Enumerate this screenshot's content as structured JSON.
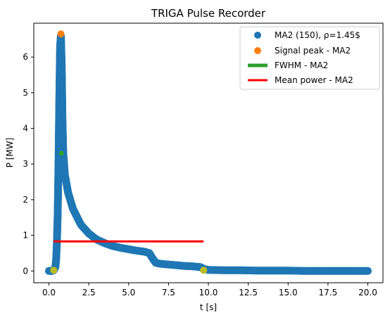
{
  "chart_data": {
    "type": "scatter",
    "title": "TRIGA Pulse Recorder",
    "xlabel": "t [s]",
    "ylabel": "P [MW]",
    "xlim": [
      -0.95,
      20.95
    ],
    "ylim": [
      -0.33,
      6.95
    ],
    "x_ticks": [
      {
        "value": 0.0,
        "label": "0.0"
      },
      {
        "value": 2.5,
        "label": "2.5"
      },
      {
        "value": 5.0,
        "label": "5.0"
      },
      {
        "value": 7.5,
        "label": "7.5"
      },
      {
        "value": 10.0,
        "label": "10.0"
      },
      {
        "value": 12.5,
        "label": "12.5"
      },
      {
        "value": 15.0,
        "label": "15.0"
      },
      {
        "value": 17.5,
        "label": "17.5"
      },
      {
        "value": 20.0,
        "label": "20.0"
      }
    ],
    "y_ticks": [
      {
        "value": 0,
        "label": "0"
      },
      {
        "value": 1,
        "label": "1"
      },
      {
        "value": 2,
        "label": "2"
      },
      {
        "value": 3,
        "label": "3"
      },
      {
        "value": 4,
        "label": "4"
      },
      {
        "value": 5,
        "label": "5"
      },
      {
        "value": 6,
        "label": "6"
      }
    ],
    "grid": false,
    "legend": {
      "position": "top-right",
      "entries": [
        {
          "label": "MA2 (150), ρ=1.45$",
          "marker": "dot",
          "color": "#1f77b4"
        },
        {
          "label": "Signal peak - MA2",
          "marker": "dot",
          "color": "#ff7f0e"
        },
        {
          "label": "FWHM - MA2",
          "marker": "line",
          "color": "#2ca02c"
        },
        {
          "label": "Mean power - MA2",
          "marker": "line",
          "color": "#ff0000"
        }
      ]
    },
    "series": [
      {
        "name": "MA2 (150), ρ=1.45$",
        "kind": "scatter",
        "color": "#1f77b4",
        "points": [
          [
            0.0,
            0.0
          ],
          [
            0.1,
            0.0
          ],
          [
            0.2,
            0.0
          ],
          [
            0.3,
            0.02
          ],
          [
            0.4,
            0.1
          ],
          [
            0.45,
            0.3
          ],
          [
            0.5,
            0.8
          ],
          [
            0.55,
            1.6
          ],
          [
            0.6,
            3.0
          ],
          [
            0.65,
            4.8
          ],
          [
            0.7,
            6.3
          ],
          [
            0.75,
            6.6
          ],
          [
            0.8,
            5.8
          ],
          [
            0.85,
            4.2
          ],
          [
            0.9,
            3.3
          ],
          [
            1.0,
            2.7
          ],
          [
            1.2,
            2.2
          ],
          [
            1.5,
            1.75
          ],
          [
            2.0,
            1.3
          ],
          [
            2.5,
            1.05
          ],
          [
            3.0,
            0.88
          ],
          [
            3.5,
            0.78
          ],
          [
            4.0,
            0.7
          ],
          [
            4.5,
            0.65
          ],
          [
            5.0,
            0.61
          ],
          [
            5.5,
            0.57
          ],
          [
            6.0,
            0.54
          ],
          [
            6.3,
            0.5
          ],
          [
            6.5,
            0.35
          ],
          [
            6.7,
            0.23
          ],
          [
            7.0,
            0.2
          ],
          [
            7.5,
            0.18
          ],
          [
            8.0,
            0.16
          ],
          [
            8.5,
            0.14
          ],
          [
            9.0,
            0.13
          ],
          [
            9.5,
            0.11
          ],
          [
            9.7,
            0.06
          ],
          [
            10.0,
            0.03
          ],
          [
            11.0,
            0.02
          ],
          [
            12.0,
            0.02
          ],
          [
            13.0,
            0.01
          ],
          [
            14.0,
            0.01
          ],
          [
            15.0,
            0.01
          ],
          [
            16.0,
            0.0
          ],
          [
            17.0,
            0.0
          ],
          [
            18.0,
            0.0
          ],
          [
            19.0,
            0.0
          ],
          [
            20.0,
            0.0
          ]
        ]
      },
      {
        "name": "Signal peak - MA2",
        "kind": "scatter",
        "color": "#ff7f0e",
        "points": [
          [
            0.75,
            6.65
          ]
        ]
      },
      {
        "name": "FWHM - MA2",
        "kind": "scatter",
        "color": "#2ca02c",
        "points": [
          [
            0.78,
            3.3
          ]
        ]
      },
      {
        "name": "Mean power - MA2",
        "kind": "line",
        "color": "#ff0000",
        "points": [
          [
            0.3,
            0.83
          ],
          [
            9.7,
            0.83
          ]
        ]
      },
      {
        "name": "",
        "kind": "scatter",
        "color": "#bcbd22",
        "points": [
          [
            0.3,
            0.02
          ],
          [
            9.7,
            0.02
          ]
        ]
      }
    ]
  }
}
